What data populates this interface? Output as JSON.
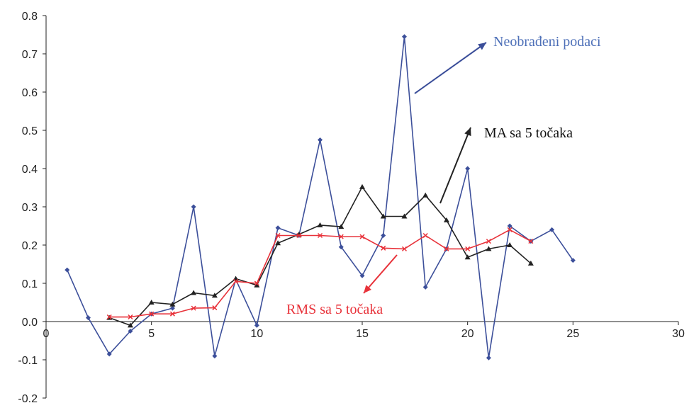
{
  "chart_data": {
    "type": "line",
    "title": "",
    "xlabel": "",
    "ylabel": "",
    "xlim": [
      0,
      30
    ],
    "ylim": [
      -0.2,
      0.8
    ],
    "x_ticks": [
      "0",
      "5",
      "10",
      "15",
      "20",
      "25",
      "30"
    ],
    "y_ticks": [
      "0.8",
      "0.7",
      "0.6",
      "0.5",
      "0.4",
      "0.3",
      "0.2",
      "0.1",
      "0.0",
      "-0.1",
      "-0.2"
    ],
    "grid": false,
    "series": [
      {
        "name": "Neobrađeni podaci",
        "color": "#3c4f9a",
        "marker": "diamond",
        "x": [
          1,
          2,
          3,
          4,
          5,
          6,
          7,
          8,
          9,
          10,
          11,
          12,
          13,
          14,
          15,
          16,
          17,
          18,
          19,
          20,
          21,
          22,
          23,
          24,
          25
        ],
        "y": [
          0.135,
          0.01,
          -0.085,
          -0.025,
          0.02,
          0.035,
          0.3,
          -0.09,
          0.11,
          -0.01,
          0.245,
          0.225,
          0.475,
          0.195,
          0.12,
          0.225,
          0.745,
          0.09,
          0.19,
          0.4,
          -0.095,
          0.25,
          0.21,
          0.24,
          0.16
        ]
      },
      {
        "name": "MA sa 5 točaka",
        "color": "#222222",
        "marker": "triangle",
        "x": [
          3,
          4,
          5,
          6,
          7,
          8,
          9,
          10,
          11,
          12,
          13,
          14,
          15,
          16,
          17,
          18,
          19,
          20,
          21,
          22,
          23
        ],
        "y": [
          0.01,
          -0.01,
          0.05,
          0.045,
          0.075,
          0.068,
          0.112,
          0.095,
          0.205,
          0.228,
          0.252,
          0.248,
          0.352,
          0.275,
          0.275,
          0.33,
          0.265,
          0.168,
          0.19,
          0.2,
          0.152
        ]
      },
      {
        "name": "RMS sa 5 točaka",
        "color": "#e8323a",
        "marker": "x",
        "x": [
          3,
          4,
          5,
          6,
          7,
          8,
          9,
          10,
          11,
          12,
          13,
          14,
          15,
          16,
          17,
          18,
          19,
          20,
          21,
          22,
          23
        ],
        "y": [
          0.012,
          0.012,
          0.02,
          0.02,
          0.035,
          0.036,
          0.105,
          0.1,
          0.225,
          0.225,
          0.225,
          0.222,
          0.222,
          0.192,
          0.19,
          0.225,
          0.19,
          0.19,
          0.21,
          0.24,
          0.21
        ]
      }
    ],
    "annotations": [
      {
        "text": "Neobrađeni podaci",
        "color": "#4e70b8"
      },
      {
        "text": "MA sa 5 točaka",
        "color": "#111111"
      },
      {
        "text": "RMS sa 5 točaka",
        "color": "#e8323a"
      }
    ]
  }
}
